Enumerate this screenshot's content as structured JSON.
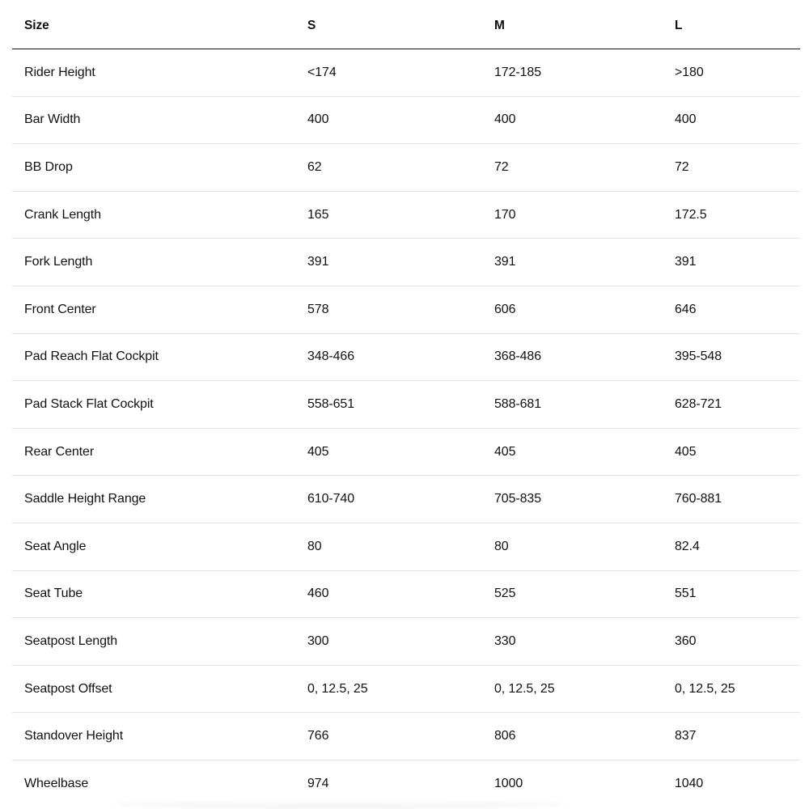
{
  "table": {
    "headers": [
      "Size",
      "S",
      "M",
      "L"
    ],
    "rows": [
      [
        "Rider Height",
        "<174",
        "172-185",
        ">180"
      ],
      [
        "Bar Width",
        "400",
        "400",
        "400"
      ],
      [
        "BB Drop",
        "62",
        "72",
        "72"
      ],
      [
        "Crank Length",
        "165",
        "170",
        "172.5"
      ],
      [
        "Fork Length",
        "391",
        "391",
        "391"
      ],
      [
        "Front Center",
        "578",
        "606",
        "646"
      ],
      [
        "Pad Reach Flat Cockpit",
        "348-466",
        "368-486",
        "395-548"
      ],
      [
        "Pad Stack Flat Cockpit",
        "558-651",
        "588-681",
        "628-721"
      ],
      [
        "Rear Center",
        "405",
        "405",
        "405"
      ],
      [
        "Saddle Height Range",
        "610-740",
        "705-835",
        "760-881"
      ],
      [
        "Seat Angle",
        "80",
        "80",
        "82.4"
      ],
      [
        "Seat Tube",
        "460",
        "525",
        "551"
      ],
      [
        "Seatpost Length",
        "300",
        "330",
        "360"
      ],
      [
        "Seatpost Offset",
        "0, 12.5, 25",
        "0, 12.5, 25",
        "0, 12.5, 25"
      ],
      [
        "Standover Height",
        "766",
        "806",
        "837"
      ],
      [
        "Wheelbase",
        "974",
        "1000",
        "1040"
      ]
    ]
  }
}
